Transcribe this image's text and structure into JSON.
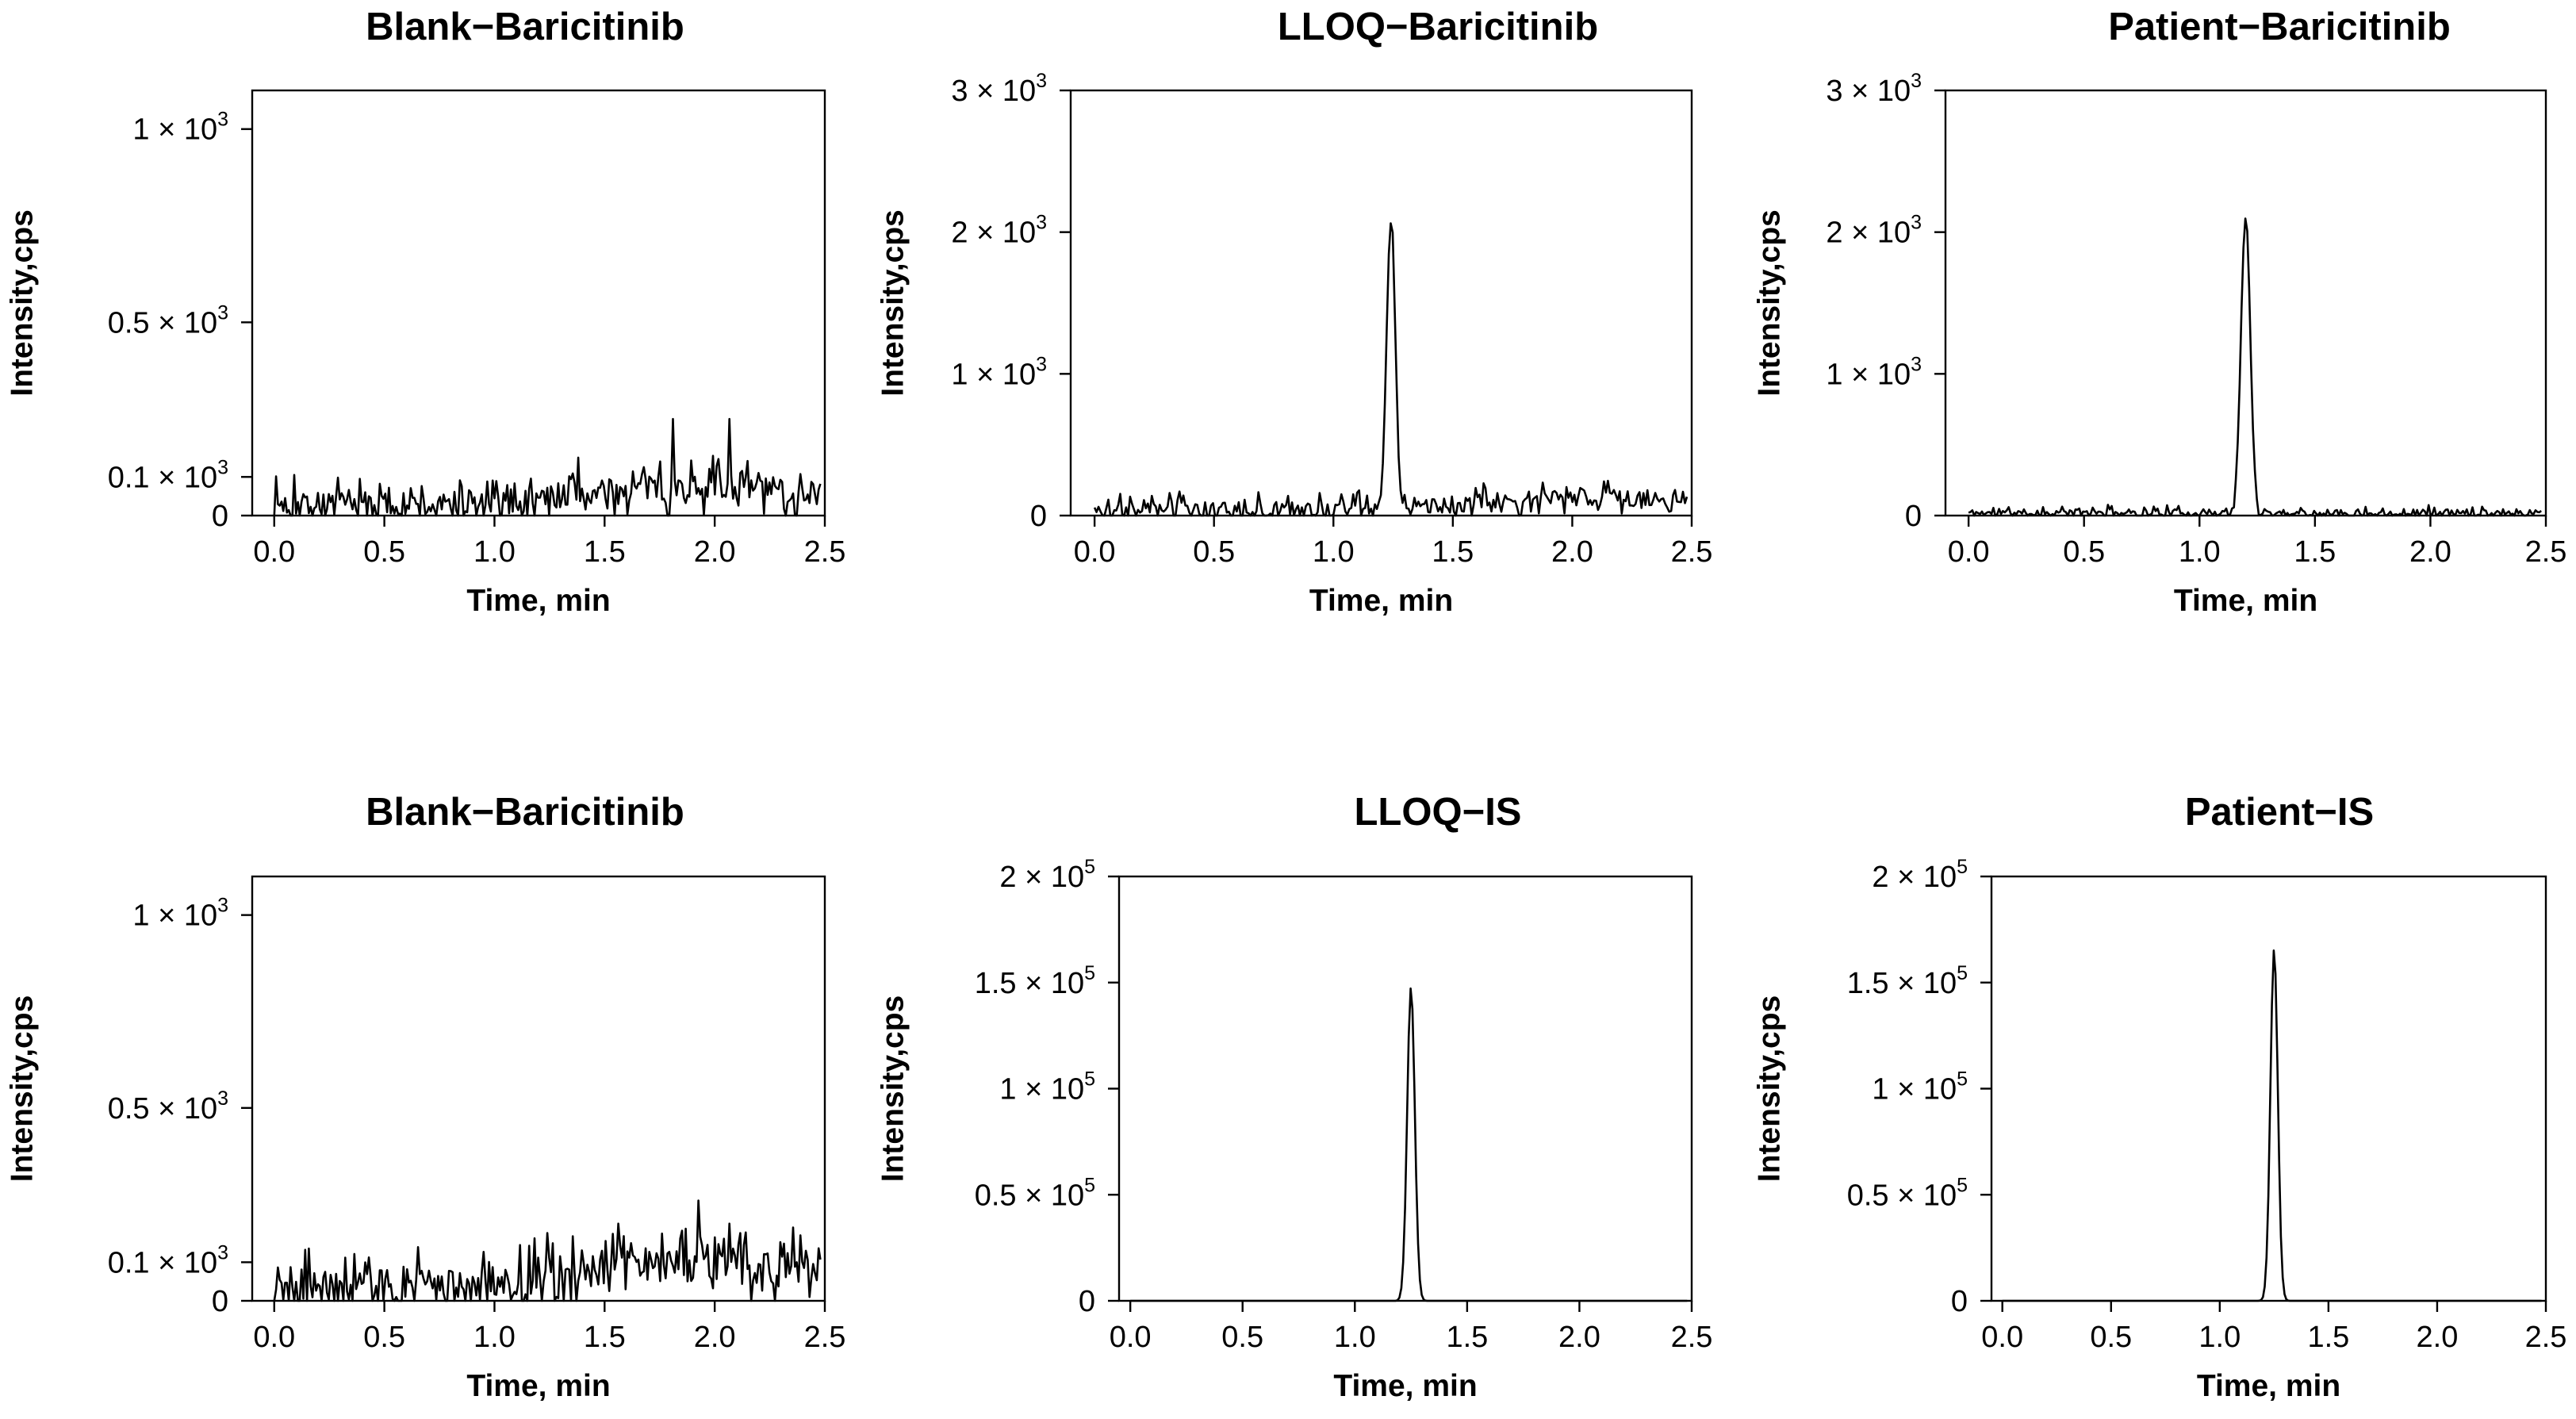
{
  "chart_data": [
    {
      "type": "line",
      "title": "Blank−Baricitinib",
      "xlabel": "Time, min",
      "ylabel": "Intensity,cps",
      "xlim": [
        -0.1,
        2.5
      ],
      "ylim": [
        0,
        1100
      ],
      "xticks": [
        "0.0",
        "0.5",
        "1.0",
        "1.5",
        "2.0",
        "2.5"
      ],
      "yticks": [
        {
          "value": 0,
          "mant": "0",
          "exp": ""
        },
        {
          "value": 100,
          "mant": "0.1 × 10",
          "exp": "3"
        },
        {
          "value": 500,
          "mant": "0.5 × 10",
          "exp": "3"
        },
        {
          "value": 1000,
          "mant": "1 × 10",
          "exp": "3"
        }
      ],
      "series": [
        {
          "noise_level": [
            [
              0,
              28
            ],
            [
              1.0,
              25
            ],
            [
              1.1,
              40
            ],
            [
              1.5,
              60
            ],
            [
              2.0,
              80
            ],
            [
              2.5,
              55
            ]
          ],
          "noise_amp": 55,
          "seed": 7,
          "spikes": [
            {
              "x": 1.81,
              "y": 250
            },
            {
              "x": 2.07,
              "y": 250
            },
            {
              "x": 1.75,
              "y": 140
            },
            {
              "x": 1.38,
              "y": 150
            },
            {
              "x": 0.09,
              "y": 105
            }
          ]
        }
      ]
    },
    {
      "type": "line",
      "title": "LLOQ−Baricitinib",
      "xlabel": "Time, min",
      "ylabel": "Intensity,cps",
      "xlim": [
        -0.1,
        2.5
      ],
      "ylim": [
        0,
        3000
      ],
      "xticks": [
        "0.0",
        "0.5",
        "1.0",
        "1.5",
        "2.0",
        "2.5"
      ],
      "yticks": [
        {
          "value": 0,
          "mant": "0",
          "exp": ""
        },
        {
          "value": 1000,
          "mant": "1 × 10",
          "exp": "3"
        },
        {
          "value": 2000,
          "mant": "2 × 10",
          "exp": "3"
        },
        {
          "value": 3000,
          "mant": "3 × 10",
          "exp": "3"
        }
      ],
      "series": [
        {
          "peak_x": 1.24,
          "peak_y": 2020,
          "peak_width": 0.018,
          "noise_level": [
            [
              0,
              30
            ],
            [
              1.1,
              40
            ],
            [
              1.4,
              70
            ],
            [
              2.0,
              140
            ],
            [
              2.5,
              80
            ]
          ],
          "noise_amp": 100,
          "seed": 3
        }
      ]
    },
    {
      "type": "line",
      "title": "Patient−Baricitinib",
      "xlabel": "Time, min",
      "ylabel": "Intensity,cps",
      "xlim": [
        -0.1,
        2.5
      ],
      "ylim": [
        0,
        3000
      ],
      "xticks": [
        "0.0",
        "0.5",
        "1.0",
        "1.5",
        "2.0",
        "2.5"
      ],
      "yticks": [
        {
          "value": 0,
          "mant": "0",
          "exp": ""
        },
        {
          "value": 1000,
          "mant": "1 × 10",
          "exp": "3"
        },
        {
          "value": 2000,
          "mant": "2 × 10",
          "exp": "3"
        },
        {
          "value": 3000,
          "mant": "3 × 10",
          "exp": "3"
        }
      ],
      "series": [
        {
          "peak_x": 1.2,
          "peak_y": 2100,
          "peak_width": 0.02,
          "noise_level": [
            [
              0,
              20
            ],
            [
              2.5,
              22
            ]
          ],
          "noise_amp": 40,
          "seed": 11
        }
      ]
    },
    {
      "type": "line",
      "title": "Blank−Baricitinib",
      "xlabel": "Time, min",
      "ylabel": "Intensity,cps",
      "xlim": [
        -0.1,
        2.5
      ],
      "ylim": [
        0,
        1100
      ],
      "xticks": [
        "0.0",
        "0.5",
        "1.0",
        "1.5",
        "2.0",
        "2.5"
      ],
      "yticks": [
        {
          "value": 0,
          "mant": "0",
          "exp": ""
        },
        {
          "value": 100,
          "mant": "0.1 × 10",
          "exp": "3"
        },
        {
          "value": 500,
          "mant": "0.5 × 10",
          "exp": "3"
        },
        {
          "value": 1000,
          "mant": "1 × 10",
          "exp": "3"
        }
      ],
      "series": [
        {
          "noise_level": [
            [
              0,
              40
            ],
            [
              1.0,
              30
            ],
            [
              1.2,
              70
            ],
            [
              1.5,
              90
            ],
            [
              2.0,
              100
            ],
            [
              2.5,
              70
            ]
          ],
          "noise_amp": 80,
          "seed": 19,
          "spikes": [
            {
              "x": 1.93,
              "y": 260
            },
            {
              "x": 2.07,
              "y": 200
            },
            {
              "x": 1.56,
              "y": 200
            },
            {
              "x": 2.36,
              "y": 190
            }
          ]
        }
      ]
    },
    {
      "type": "line",
      "title": "LLOQ−IS",
      "xlabel": "Time, min",
      "ylabel": "Intensity,cps",
      "xlim": [
        -0.05,
        2.5
      ],
      "ylim": [
        0,
        200000
      ],
      "xticks": [
        "0.0",
        "0.5",
        "1.0",
        "1.5",
        "2.0",
        "2.5"
      ],
      "yticks": [
        {
          "value": 0,
          "mant": "0",
          "exp": ""
        },
        {
          "value": 50000,
          "mant": "0.5 × 10",
          "exp": "5"
        },
        {
          "value": 100000,
          "mant": "1 × 10",
          "exp": "5"
        },
        {
          "value": 150000,
          "mant": "1.5 × 10",
          "exp": "5"
        },
        {
          "value": 200000,
          "mant": "2 × 10",
          "exp": "5"
        }
      ],
      "series": [
        {
          "peak_x": 1.25,
          "peak_y": 148000,
          "peak_width": 0.017,
          "noise_level": [
            [
              0,
              0
            ],
            [
              2.5,
              0
            ]
          ],
          "noise_amp": 0,
          "seed": 1
        }
      ]
    },
    {
      "type": "line",
      "title": "Patient−IS",
      "xlabel": "Time, min",
      "ylabel": "Intensity,cps",
      "xlim": [
        -0.05,
        2.5
      ],
      "ylim": [
        0,
        200000
      ],
      "xticks": [
        "0.0",
        "0.5",
        "1.0",
        "1.5",
        "2.0",
        "2.5"
      ],
      "yticks": [
        {
          "value": 0,
          "mant": "0",
          "exp": ""
        },
        {
          "value": 50000,
          "mant": "0.5 × 10",
          "exp": "5"
        },
        {
          "value": 100000,
          "mant": "1 × 10",
          "exp": "5"
        },
        {
          "value": 150000,
          "mant": "1.5 × 10",
          "exp": "5"
        },
        {
          "value": 200000,
          "mant": "2 × 10",
          "exp": "5"
        }
      ],
      "series": [
        {
          "peak_x": 1.25,
          "peak_y": 166000,
          "peak_width": 0.017,
          "noise_level": [
            [
              0,
              0
            ],
            [
              2.5,
              0
            ]
          ],
          "noise_amp": 0,
          "seed": 5
        }
      ]
    }
  ]
}
